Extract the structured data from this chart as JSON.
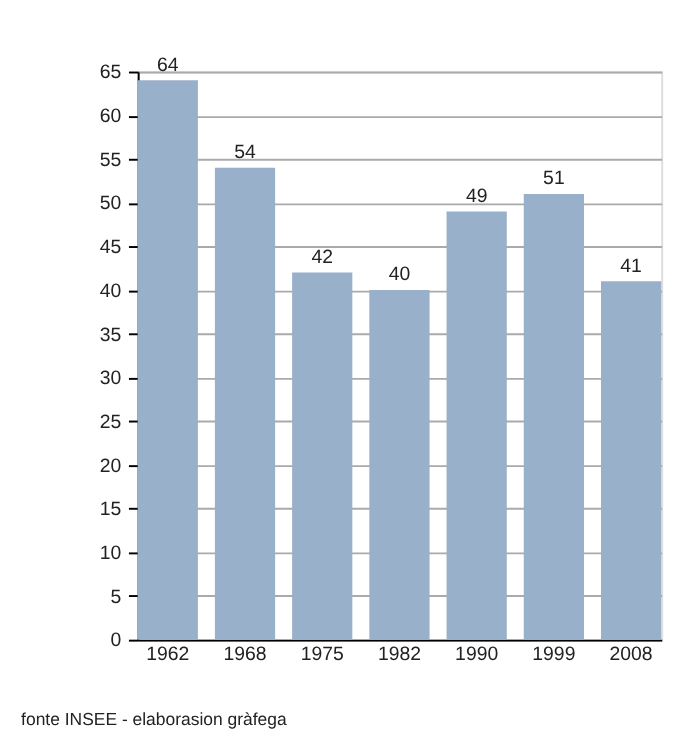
{
  "chart_data": {
    "type": "bar",
    "categories": [
      "1962",
      "1968",
      "1975",
      "1982",
      "1990",
      "1999",
      "2008"
    ],
    "values": [
      64,
      54,
      42,
      40,
      49,
      51,
      41
    ],
    "color": "#98b0c9",
    "ylim": [
      0,
      65
    ],
    "yticks": [
      0,
      5,
      10,
      15,
      20,
      25,
      30,
      35,
      40,
      45,
      50,
      55,
      60,
      65
    ],
    "grid": "y",
    "data_labels": true,
    "annotations": [
      "fonte INSEE - elaborasion gràfega"
    ]
  }
}
